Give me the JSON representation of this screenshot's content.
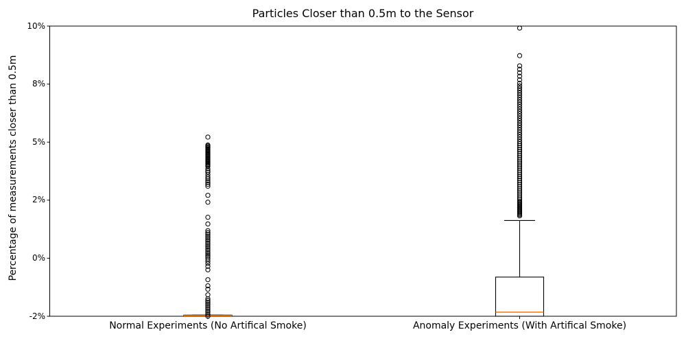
{
  "chart_data": {
    "type": "boxplot",
    "title": "Particles Closer than 0.5m to the Sensor",
    "ylabel": "Percentage of measurements closer than 0.5m",
    "xlabel": "",
    "grid": false,
    "background": "#ffffff",
    "y_axis": {
      "tick_values": [
        -2,
        0,
        2,
        5,
        8,
        10
      ],
      "tick_labels": [
        "-2%",
        "0%",
        "2%",
        "5%",
        "8%",
        "10%"
      ],
      "spacing": "uniform",
      "min": -2,
      "max": 10,
      "unit": "percent"
    },
    "colors": {
      "box": "#000000",
      "median": "#ff7f0e",
      "flier_edge": "#000000",
      "spine": "#000000",
      "text": "#000000"
    },
    "groups": [
      {
        "label": "Normal Experiments (No Artifical Smoke)",
        "box": {
          "whisker_low": -2.0,
          "q1": -2.0,
          "median": -1.98,
          "q3": -1.96,
          "whisker_high": -1.96
        },
        "fliers": [
          5.26,
          4.85,
          4.8,
          4.75,
          4.7,
          4.65,
          4.6,
          4.55,
          4.5,
          4.45,
          4.4,
          4.35,
          4.3,
          4.25,
          4.2,
          4.15,
          4.1,
          4.05,
          4.0,
          3.95,
          3.9,
          3.85,
          3.8,
          3.75,
          3.62,
          3.52,
          3.44,
          3.32,
          3.2,
          3.1,
          3.0,
          2.92,
          2.82,
          2.72,
          2.25,
          1.93,
          1.41,
          1.18,
          0.95,
          0.88,
          0.82,
          0.76,
          0.7,
          0.64,
          0.58,
          0.52,
          0.46,
          0.4,
          0.34,
          0.28,
          0.22,
          0.16,
          0.1,
          0.05,
          -0.02,
          -0.1,
          -0.18,
          -0.28,
          -0.4,
          -0.74,
          -0.95,
          -1.07,
          -1.26,
          -1.4,
          -1.46,
          -1.52,
          -1.58,
          -1.64,
          -1.7,
          -1.76,
          -1.82,
          -1.88,
          -1.94,
          -2.0
        ]
      },
      {
        "label": "Anomaly Experiments (With Artifical Smoke)",
        "box": {
          "whisker_low": -2.0,
          "q1": -2.0,
          "median": -1.86,
          "q3": -0.65,
          "whisker_high": 1.3
        },
        "fliers": [
          9.93,
          8.98,
          8.63,
          8.51,
          8.39,
          8.27,
          8.15,
          8.03,
          7.91,
          7.79,
          7.67,
          7.55,
          7.43,
          7.31,
          7.19,
          7.07,
          6.95,
          6.83,
          6.71,
          6.59,
          6.47,
          6.35,
          6.23,
          6.11,
          5.99,
          5.87,
          5.75,
          5.63,
          5.51,
          5.39,
          5.27,
          5.15,
          5.03,
          4.92,
          4.82,
          4.72,
          4.62,
          4.52,
          4.42,
          4.32,
          4.22,
          4.12,
          4.02,
          3.92,
          3.82,
          3.72,
          3.62,
          3.52,
          3.42,
          3.32,
          3.22,
          3.12,
          3.02,
          2.92,
          2.82,
          2.72,
          2.62,
          2.52,
          2.42,
          2.32,
          2.22,
          2.12,
          2.02,
          1.95,
          1.92,
          1.88,
          1.85,
          1.81,
          1.78,
          1.74,
          1.71,
          1.67,
          1.64,
          1.6,
          1.57,
          1.53,
          1.5,
          1.46
        ]
      }
    ]
  }
}
